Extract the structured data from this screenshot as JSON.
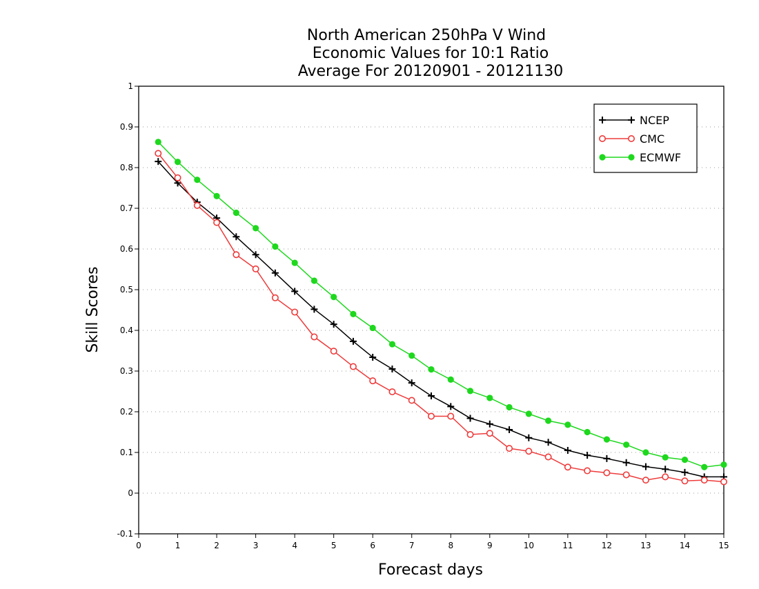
{
  "chart_data": {
    "type": "line",
    "title": [
      "North American 250hPa V Wind",
      "Economic Values for 10:1 Ratio",
      "Average For 20120901 - 20121130"
    ],
    "xlabel": "Forecast days",
    "ylabel": "Skill Scores",
    "xlim": [
      0,
      15
    ],
    "ylim": [
      -0.1,
      1
    ],
    "xticks": [
      0,
      1,
      2,
      3,
      4,
      5,
      6,
      7,
      8,
      9,
      10,
      11,
      12,
      13,
      14,
      15
    ],
    "xtick_labels": [
      "0",
      "1",
      "2",
      "3",
      "4",
      "5",
      "6",
      "7",
      "8",
      "9",
      "10",
      "11",
      "12",
      "13",
      "14",
      "15"
    ],
    "yticks": [
      -0.1,
      0,
      0.1,
      0.2,
      0.3,
      0.4,
      0.5,
      0.6,
      0.7,
      0.8,
      0.9,
      1
    ],
    "ytick_labels": [
      "-0.1",
      "0",
      "0.1",
      "0.2",
      "0.3",
      "0.4",
      "0.5",
      "0.6",
      "0.7",
      "0.8",
      "0.9",
      "1"
    ],
    "grid": "horizontal dotted",
    "legend_position": "top-right",
    "x": [
      0.5,
      1,
      1.5,
      2,
      2.5,
      3,
      3.5,
      4,
      4.5,
      5,
      5.5,
      6,
      6.5,
      7,
      7.5,
      8,
      8.5,
      9,
      9.5,
      10,
      10.5,
      11,
      11.5,
      12,
      12.5,
      13,
      13.5,
      14,
      14.5,
      15
    ],
    "series": [
      {
        "name": "NCEP",
        "color": "#000000",
        "marker": "plus",
        "values": [
          0.815,
          0.762,
          0.715,
          0.676,
          0.63,
          0.586,
          0.541,
          0.496,
          0.452,
          0.415,
          0.373,
          0.334,
          0.305,
          0.271,
          0.239,
          0.213,
          0.184,
          0.17,
          0.156,
          0.136,
          0.125,
          0.105,
          0.093,
          0.085,
          0.075,
          0.065,
          0.059,
          0.051,
          0.04,
          0.04
        ]
      },
      {
        "name": "CMC",
        "color": "#ee3a3a",
        "marker": "open-circle",
        "values": [
          0.835,
          0.775,
          0.707,
          0.665,
          0.586,
          0.551,
          0.48,
          0.445,
          0.384,
          0.349,
          0.311,
          0.276,
          0.249,
          0.228,
          0.189,
          0.189,
          0.144,
          0.147,
          0.11,
          0.103,
          0.089,
          0.064,
          0.055,
          0.05,
          0.045,
          0.032,
          0.04,
          0.03,
          0.032,
          0.028
        ]
      },
      {
        "name": "ECMWF",
        "color": "#1ed81e",
        "marker": "filled-circle",
        "values": [
          0.863,
          0.814,
          0.77,
          0.73,
          0.689,
          0.651,
          0.606,
          0.566,
          0.522,
          0.482,
          0.44,
          0.406,
          0.366,
          0.338,
          0.304,
          0.279,
          0.251,
          0.234,
          0.211,
          0.195,
          0.178,
          0.168,
          0.15,
          0.132,
          0.119,
          0.1,
          0.088,
          0.082,
          0.064,
          0.07
        ]
      }
    ]
  }
}
